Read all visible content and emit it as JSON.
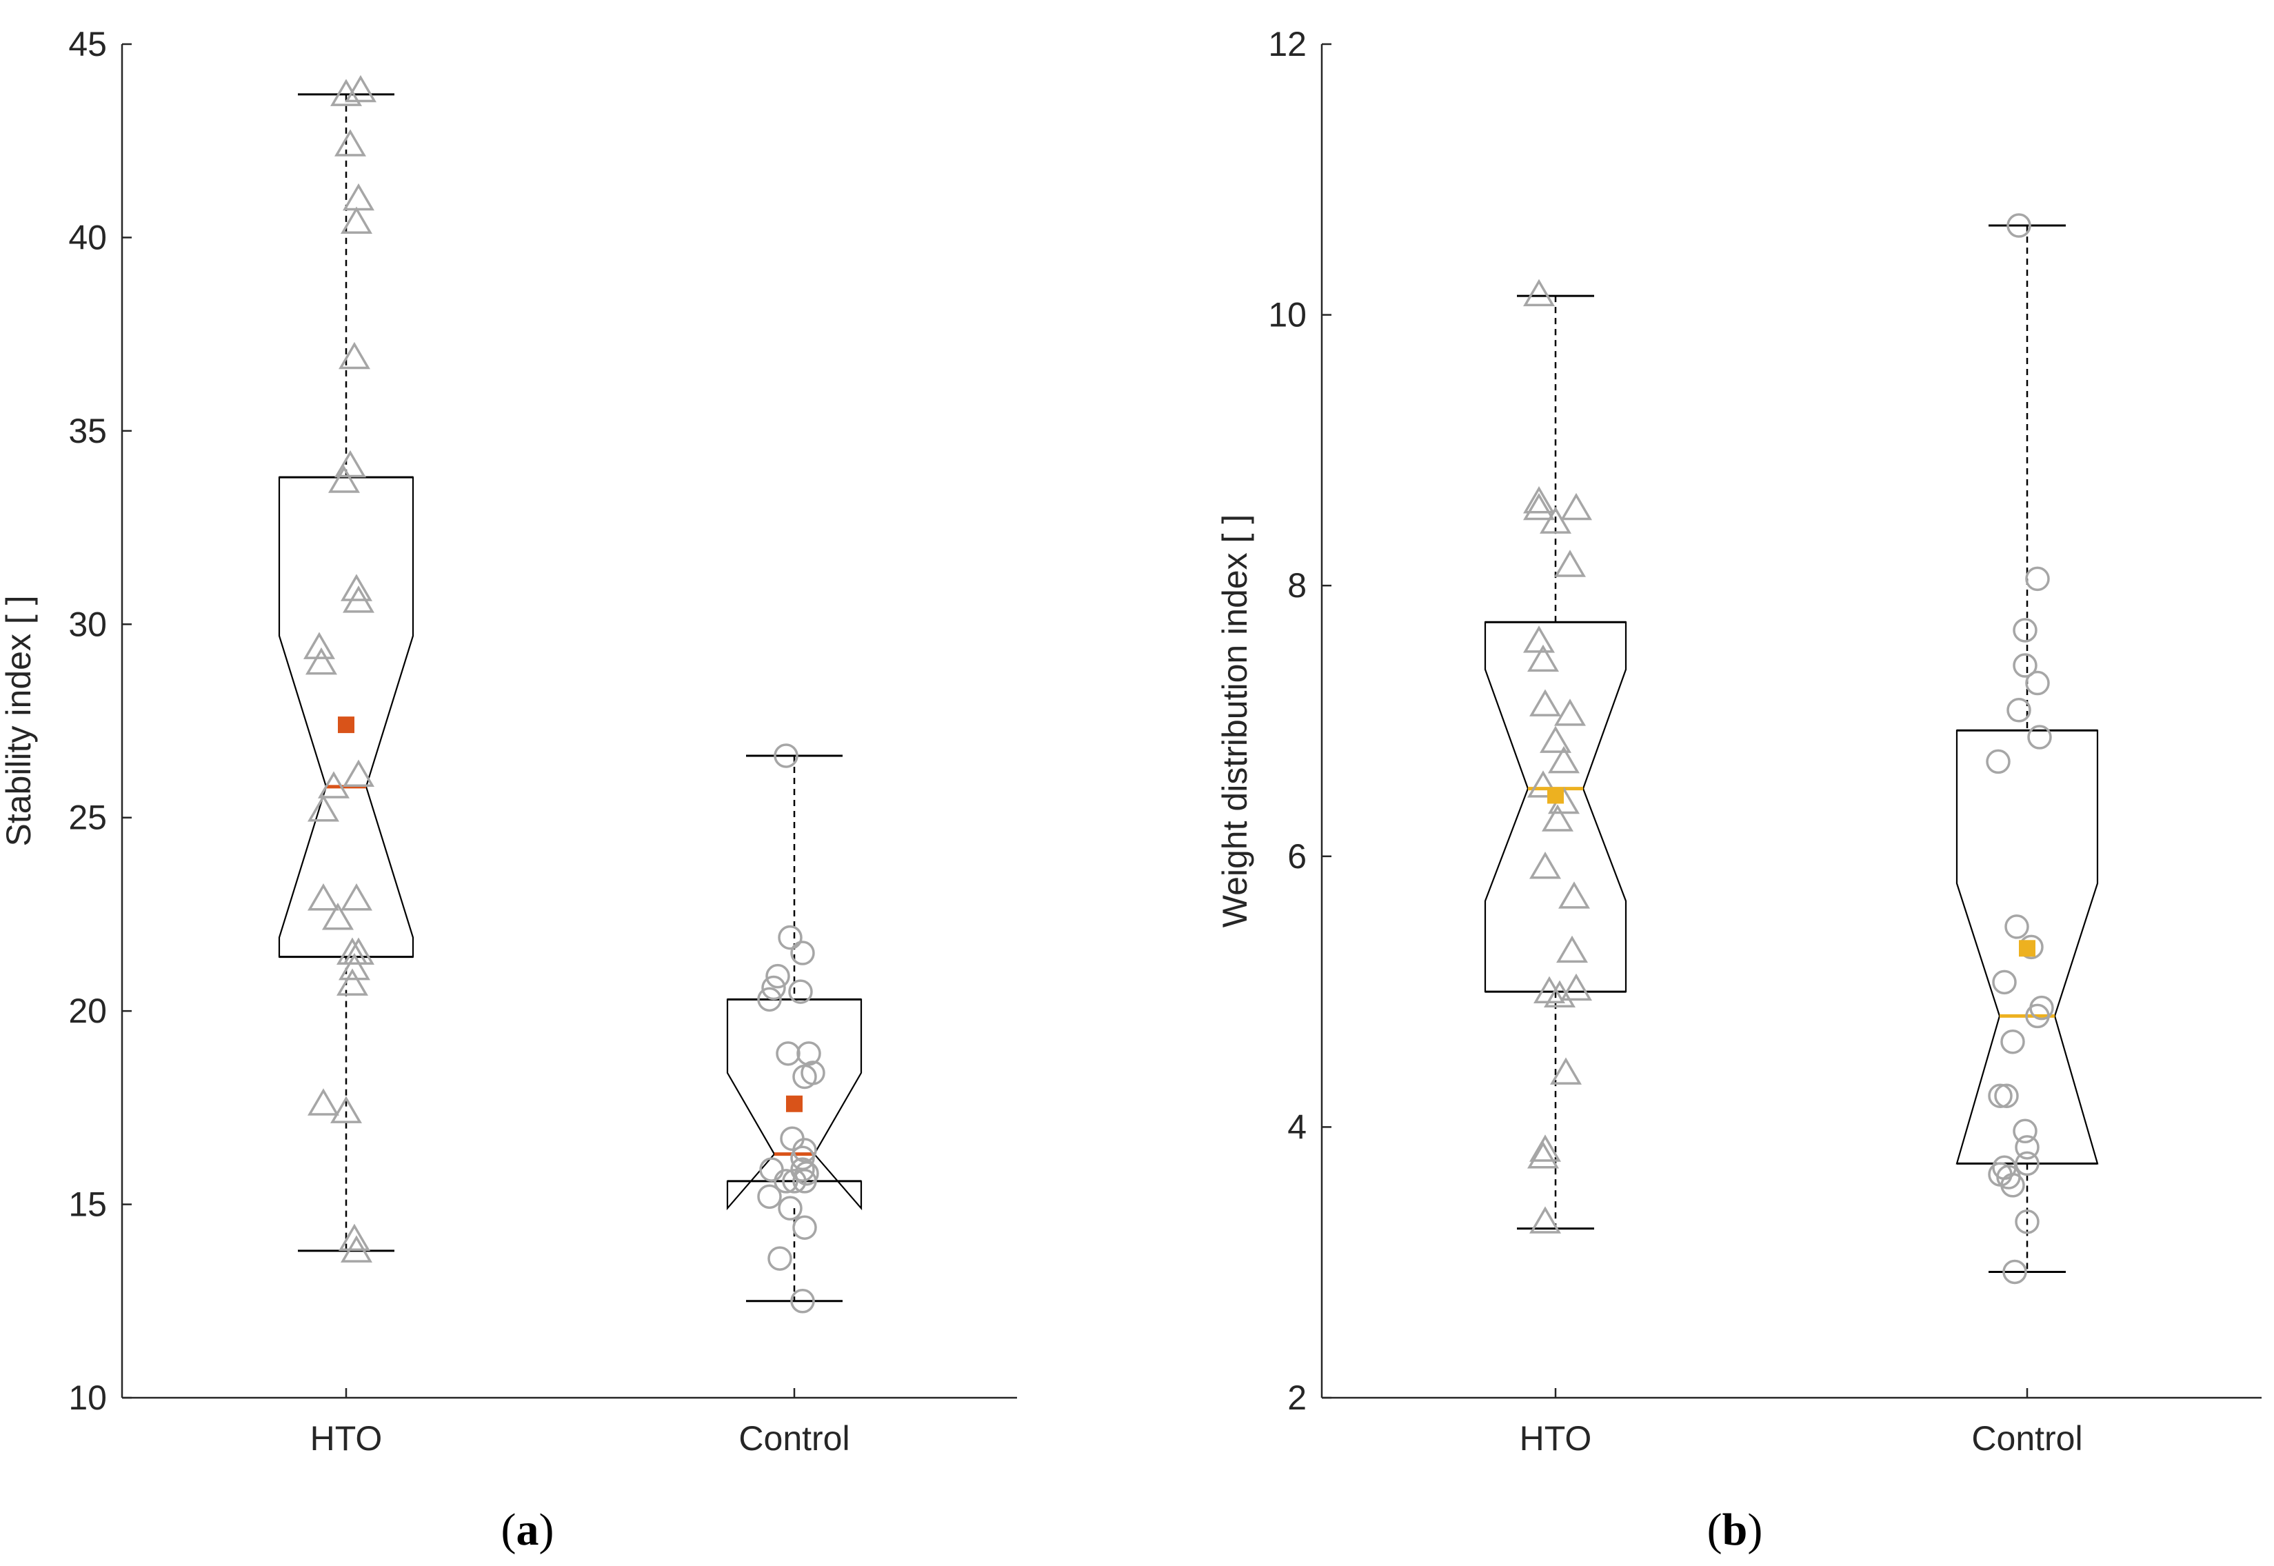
{
  "chart_data": [
    {
      "type": "boxplot",
      "panel": "a",
      "caption": {
        "open": "(",
        "letter": "a",
        "close": ")"
      },
      "ylabel": "Stability index [ ]",
      "xlabel": "",
      "ylim": [
        10,
        45
      ],
      "yticks": [
        10,
        15,
        20,
        25,
        30,
        35,
        40,
        45
      ],
      "categories": [
        "HTO",
        "Control"
      ],
      "accent_color": "#d95319",
      "point_color": "#a6a6a6",
      "boxes": [
        {
          "name": "HTO",
          "marker": "triangle",
          "whisker_low": 13.8,
          "q1": 21.4,
          "median": 25.8,
          "q3": 33.8,
          "whisker_high": 43.7,
          "notch_low": 21.9,
          "notch_high": 29.7,
          "mean": 27.4,
          "points": [
            [
              0.0,
              43.7
            ],
            [
              0.07,
              43.8
            ],
            [
              0.02,
              42.4
            ],
            [
              0.06,
              41.0
            ],
            [
              0.05,
              40.4
            ],
            [
              0.04,
              36.9
            ],
            [
              0.02,
              34.1
            ],
            [
              -0.01,
              33.7
            ],
            [
              0.05,
              30.9
            ],
            [
              0.06,
              30.6
            ],
            [
              -0.13,
              29.4
            ],
            [
              -0.12,
              29.0
            ],
            [
              0.06,
              26.1
            ],
            [
              -0.06,
              25.8
            ],
            [
              -0.11,
              25.2
            ],
            [
              0.05,
              22.9
            ],
            [
              -0.11,
              22.9
            ],
            [
              -0.04,
              22.4
            ],
            [
              0.03,
              21.5
            ],
            [
              0.06,
              21.5
            ],
            [
              0.04,
              21.1
            ],
            [
              0.03,
              20.7
            ],
            [
              -0.11,
              17.6
            ],
            [
              0.0,
              17.4
            ],
            [
              0.04,
              14.1
            ],
            [
              0.05,
              13.8
            ]
          ]
        },
        {
          "name": "Control",
          "marker": "circle",
          "whisker_low": 12.5,
          "q1": 15.6,
          "median": 16.3,
          "q3": 20.3,
          "whisker_high": 26.6,
          "notch_low": 14.9,
          "notch_high": 18.4,
          "mean": 17.6,
          "points": [
            [
              -0.04,
              26.6
            ],
            [
              -0.02,
              21.9
            ],
            [
              0.04,
              21.5
            ],
            [
              -0.08,
              20.9
            ],
            [
              -0.1,
              20.6
            ],
            [
              -0.12,
              20.3
            ],
            [
              0.03,
              20.5
            ],
            [
              -0.03,
              18.9
            ],
            [
              0.07,
              18.9
            ],
            [
              0.09,
              18.4
            ],
            [
              0.05,
              18.3
            ],
            [
              -0.01,
              16.7
            ],
            [
              0.05,
              16.4
            ],
            [
              0.04,
              16.2
            ],
            [
              -0.11,
              15.9
            ],
            [
              0.04,
              15.9
            ],
            [
              0.06,
              15.8
            ],
            [
              0.0,
              15.6
            ],
            [
              -0.04,
              15.6
            ],
            [
              0.05,
              15.6
            ],
            [
              -0.12,
              15.2
            ],
            [
              -0.02,
              14.9
            ],
            [
              0.05,
              14.4
            ],
            [
              -0.07,
              13.6
            ],
            [
              0.04,
              12.5
            ]
          ]
        }
      ]
    },
    {
      "type": "boxplot",
      "panel": "b",
      "caption": {
        "open": "(",
        "letter": "b",
        "close": ")"
      },
      "ylabel": "Weight distribution index [ ]",
      "xlabel": "",
      "ylim": [
        2,
        12
      ],
      "yticks": [
        2,
        4,
        6,
        8,
        10,
        12
      ],
      "categories": [
        "HTO",
        "Control"
      ],
      "accent_color": "#edb120",
      "point_color": "#a6a6a6",
      "boxes": [
        {
          "name": "HTO",
          "marker": "triangle",
          "whisker_low": 3.25,
          "q1": 5.0,
          "median": 6.5,
          "q3": 7.73,
          "whisker_high": 10.14,
          "notch_low": 5.67,
          "notch_high": 7.38,
          "mean": 6.45,
          "points": [
            [
              -0.08,
              10.15
            ],
            [
              -0.08,
              8.62
            ],
            [
              -0.08,
              8.57
            ],
            [
              0.0,
              8.47
            ],
            [
              0.1,
              8.57
            ],
            [
              0.07,
              8.15
            ],
            [
              -0.08,
              7.59
            ],
            [
              -0.06,
              7.45
            ],
            [
              -0.05,
              7.12
            ],
            [
              0.07,
              7.05
            ],
            [
              0.0,
              6.85
            ],
            [
              0.04,
              6.7
            ],
            [
              -0.06,
              6.52
            ],
            [
              0.04,
              6.4
            ],
            [
              0.01,
              6.27
            ],
            [
              -0.05,
              5.92
            ],
            [
              0.09,
              5.7
            ],
            [
              0.08,
              5.3
            ],
            [
              -0.03,
              5.0
            ],
            [
              0.02,
              4.97
            ],
            [
              0.1,
              5.02
            ],
            [
              0.05,
              4.4
            ],
            [
              -0.05,
              3.83
            ],
            [
              -0.06,
              3.78
            ],
            [
              -0.05,
              3.3
            ]
          ]
        },
        {
          "name": "Control",
          "marker": "circle",
          "whisker_low": 2.93,
          "q1": 3.73,
          "median": 4.82,
          "q3": 6.93,
          "whisker_high": 10.66,
          "notch_low": 3.73,
          "notch_high": 5.8,
          "mean": 5.32,
          "points": [
            [
              -0.04,
              10.66
            ],
            [
              0.05,
              8.05
            ],
            [
              -0.01,
              7.67
            ],
            [
              -0.01,
              7.41
            ],
            [
              0.05,
              7.28
            ],
            [
              -0.04,
              7.08
            ],
            [
              0.06,
              6.88
            ],
            [
              -0.14,
              6.7
            ],
            [
              -0.05,
              5.48
            ],
            [
              -0.11,
              5.07
            ],
            [
              0.02,
              5.33
            ],
            [
              0.07,
              4.88
            ],
            [
              0.05,
              4.82
            ],
            [
              -0.07,
              4.63
            ],
            [
              -0.1,
              4.23
            ],
            [
              -0.13,
              4.23
            ],
            [
              -0.01,
              3.97
            ],
            [
              0.0,
              3.85
            ],
            [
              0.0,
              3.73
            ],
            [
              -0.11,
              3.7
            ],
            [
              -0.13,
              3.65
            ],
            [
              -0.09,
              3.63
            ],
            [
              -0.07,
              3.57
            ],
            [
              0.0,
              3.3
            ],
            [
              -0.06,
              2.93
            ]
          ]
        }
      ]
    }
  ]
}
